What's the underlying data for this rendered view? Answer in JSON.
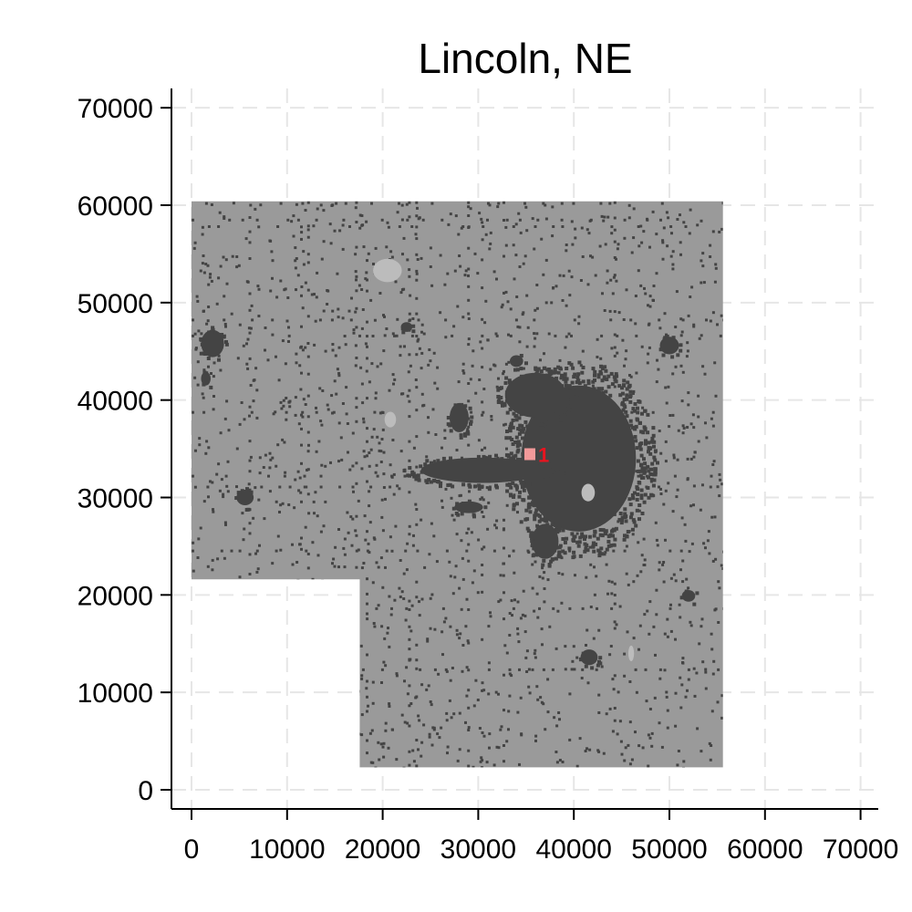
{
  "chart_data": {
    "type": "map",
    "title": "Lincoln, NE",
    "xlim": [
      0,
      72000
    ],
    "ylim": [
      0,
      72000
    ],
    "x_ticks": [
      0,
      10000,
      20000,
      30000,
      40000,
      50000,
      60000,
      70000
    ],
    "y_ticks": [
      0,
      10000,
      20000,
      30000,
      40000,
      50000,
      60000,
      70000
    ],
    "x_tick_labels": [
      "0",
      "10000",
      "20000",
      "30000",
      "40000",
      "50000",
      "60000",
      "70000"
    ],
    "y_tick_labels": [
      "0",
      "10000",
      "20000",
      "30000",
      "40000",
      "50000",
      "60000",
      "70000"
    ],
    "grid": "dashed",
    "region_outline": [
      [
        0,
        60400
      ],
      [
        55600,
        60400
      ],
      [
        55600,
        2300
      ],
      [
        17600,
        2300
      ],
      [
        17600,
        21600
      ],
      [
        0,
        21600
      ]
    ],
    "dense_areas": [
      {
        "x": 40500,
        "y": 34000,
        "rx": 6000,
        "ry": 7500
      },
      {
        "x": 36000,
        "y": 40500,
        "rx": 3200,
        "ry": 2300
      },
      {
        "x": 30500,
        "y": 32800,
        "rx": 6500,
        "ry": 1300
      },
      {
        "x": 28000,
        "y": 38200,
        "rx": 1000,
        "ry": 1500
      },
      {
        "x": 37000,
        "y": 25500,
        "rx": 1400,
        "ry": 1800
      },
      {
        "x": 2200,
        "y": 45800,
        "rx": 1200,
        "ry": 1400
      },
      {
        "x": 1500,
        "y": 42200,
        "rx": 500,
        "ry": 700
      },
      {
        "x": 50000,
        "y": 45600,
        "rx": 1000,
        "ry": 900
      },
      {
        "x": 5600,
        "y": 30000,
        "rx": 900,
        "ry": 800
      },
      {
        "x": 41600,
        "y": 13600,
        "rx": 900,
        "ry": 800
      },
      {
        "x": 52000,
        "y": 19900,
        "rx": 700,
        "ry": 600
      },
      {
        "x": 29000,
        "y": 29000,
        "rx": 1500,
        "ry": 600
      },
      {
        "x": 22500,
        "y": 47500,
        "rx": 600,
        "ry": 500
      },
      {
        "x": 34000,
        "y": 44000,
        "rx": 700,
        "ry": 600
      }
    ],
    "light_areas": [
      {
        "x": 20500,
        "y": 53300,
        "rx": 1500,
        "ry": 1200
      },
      {
        "x": 41500,
        "y": 30500,
        "rx": 700,
        "ry": 900
      },
      {
        "x": 20800,
        "y": 38000,
        "rx": 600,
        "ry": 800
      },
      {
        "x": 46000,
        "y": 14000,
        "rx": 300,
        "ry": 800
      }
    ],
    "markers": [
      {
        "label": "1",
        "x": 35400,
        "y": 34400
      }
    ]
  },
  "colors": {
    "background": "#ffffff",
    "region_fill": "#9a9a9a",
    "dense_fill": "#444444",
    "light_fill": "#bcbcbc",
    "grid": "#e6e6e6",
    "axis": "#000000",
    "marker": "#f39a9a",
    "marker_label": "#e8141f"
  }
}
